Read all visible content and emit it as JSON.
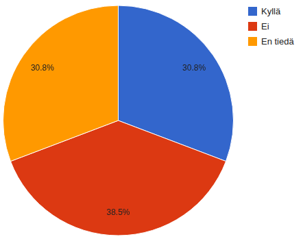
{
  "chart_data": {
    "type": "pie",
    "categories": [
      "Kyllä",
      "Ei",
      "En tiedä"
    ],
    "values": [
      30.8,
      38.5,
      30.8
    ],
    "value_labels": [
      "30.8%",
      "38.5%",
      "30.8%"
    ],
    "colors": [
      "#3366cc",
      "#dc3912",
      "#ff9900"
    ],
    "data_labels": true,
    "legend": "top-right"
  }
}
